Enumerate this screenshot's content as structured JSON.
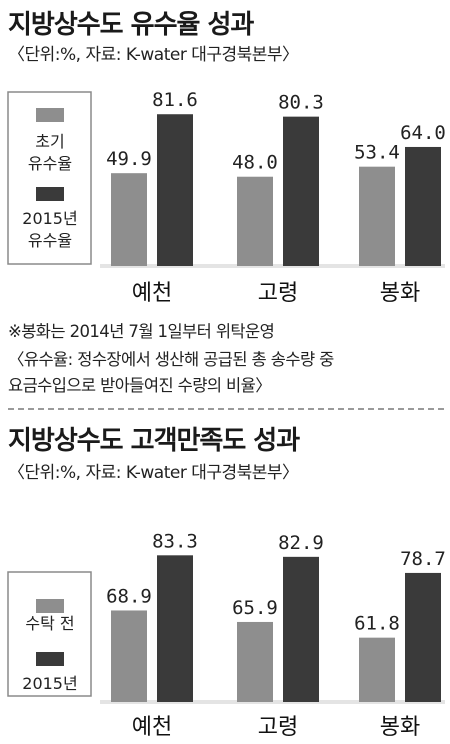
{
  "colors": {
    "initial": "#8e8e8e",
    "latest": "#3a3a3a",
    "legend_border": "#8a8a8a",
    "divider": "#9a9a9a"
  },
  "section1": {
    "title": "지방상수도 유수율 성과",
    "subtitle": "〈단위:%, 자료: K-water 대구경북본부〉",
    "notes": [
      "※봉화는 2014년 7월 1일부터 위탁운영",
      "〈유수율: 정수장에서 생산해 공급된 총 송수량 중",
      " 요금수입으로 받아들여진 수량의 비율〉"
    ]
  },
  "section2": {
    "title": "지방상수도 고객만족도 성과",
    "subtitle": "〈단위:%, 자료: K-water 대구경북본부〉"
  },
  "chart_data": [
    {
      "type": "bar",
      "categories": [
        "예천",
        "고령",
        "봉화"
      ],
      "series": [
        {
          "name": "초기 유수율",
          "legend_lines": [
            "초기",
            "유수율"
          ],
          "values": [
            49.9,
            48.0,
            53.4
          ],
          "labels": [
            "49.9",
            "48.0",
            "53.4"
          ]
        },
        {
          "name": "2015년 유수율",
          "legend_lines": [
            "2015년",
            "유수율"
          ],
          "values": [
            81.6,
            80.3,
            64.0
          ],
          "labels": [
            "81.6",
            "80.3",
            "64.0"
          ]
        }
      ],
      "title": "지방상수도 유수율 성과",
      "ylabel": "%",
      "legend": "left"
    },
    {
      "type": "bar",
      "categories": [
        "예천",
        "고령",
        "봉화"
      ],
      "series": [
        {
          "name": "수탁 전",
          "legend_lines": [
            "수탁 전"
          ],
          "values": [
            68.9,
            65.9,
            61.8
          ],
          "labels": [
            "68.9",
            "65.9",
            "61.8"
          ]
        },
        {
          "name": "2015년",
          "legend_lines": [
            "2015년"
          ],
          "values": [
            83.3,
            82.9,
            78.7
          ],
          "labels": [
            "83.3",
            "82.9",
            "78.7"
          ]
        }
      ],
      "title": "지방상수도 고객만족도 성과",
      "ylabel": "%",
      "legend": "left"
    }
  ]
}
